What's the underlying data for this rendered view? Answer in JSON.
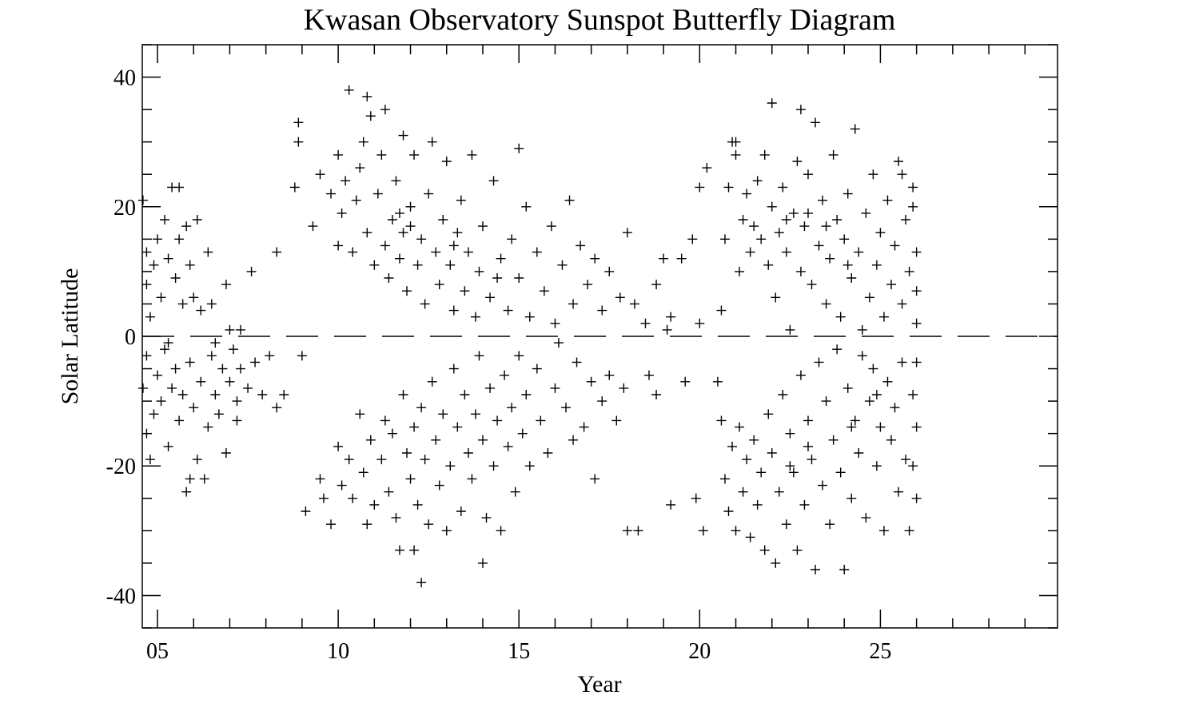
{
  "chart_data": {
    "type": "scatter",
    "title": "Kwasan Observatory Sunspot Butterfly Diagram",
    "xlabel": "Year",
    "ylabel": "Solar Latitude",
    "xlim": [
      4.58,
      29.9
    ],
    "ylim": [
      -45,
      45
    ],
    "xticks": [
      {
        "value": 5,
        "label": "05"
      },
      {
        "value": 10,
        "label": "10"
      },
      {
        "value": 15,
        "label": "15"
      },
      {
        "value": 20,
        "label": "20"
      },
      {
        "value": 25,
        "label": "25"
      }
    ],
    "yticks": [
      {
        "value": -40,
        "label": "-40"
      },
      {
        "value": -20,
        "label": "-20"
      },
      {
        "value": 0,
        "label": "0"
      },
      {
        "value": 20,
        "label": "20"
      },
      {
        "value": 40,
        "label": "40"
      }
    ],
    "x_minor_step": 1,
    "y_minor_step": 5,
    "grid": false,
    "marker": "plus",
    "color": "#000000",
    "reference_line": {
      "y": 0,
      "style": "dashed"
    },
    "points": [
      [
        4.6,
        21
      ],
      [
        4.7,
        13
      ],
      [
        4.7,
        8
      ],
      [
        4.8,
        3
      ],
      [
        4.9,
        11
      ],
      [
        5.0,
        15
      ],
      [
        5.1,
        6
      ],
      [
        5.2,
        18
      ],
      [
        5.3,
        12
      ],
      [
        5.4,
        23
      ],
      [
        5.5,
        9
      ],
      [
        5.6,
        15
      ],
      [
        5.6,
        23
      ],
      [
        5.7,
        5
      ],
      [
        5.8,
        17
      ],
      [
        5.9,
        11
      ],
      [
        6.0,
        6
      ],
      [
        6.1,
        18
      ],
      [
        6.2,
        4
      ],
      [
        6.4,
        13
      ],
      [
        6.5,
        5
      ],
      [
        6.9,
        8
      ],
      [
        7.0,
        1
      ],
      [
        7.3,
        1
      ],
      [
        7.6,
        10
      ],
      [
        8.3,
        13
      ],
      [
        4.6,
        -8
      ],
      [
        4.7,
        -3
      ],
      [
        4.7,
        -15
      ],
      [
        4.8,
        -19
      ],
      [
        4.9,
        -12
      ],
      [
        5.0,
        -6
      ],
      [
        5.1,
        -10
      ],
      [
        5.2,
        -2
      ],
      [
        5.3,
        -17
      ],
      [
        5.4,
        -8
      ],
      [
        5.5,
        -5
      ],
      [
        5.6,
        -13
      ],
      [
        5.7,
        -9
      ],
      [
        5.8,
        -24
      ],
      [
        5.9,
        -4
      ],
      [
        6.0,
        -11
      ],
      [
        6.1,
        -19
      ],
      [
        6.2,
        -7
      ],
      [
        6.3,
        -22
      ],
      [
        6.4,
        -14
      ],
      [
        6.5,
        -3
      ],
      [
        6.6,
        -9
      ],
      [
        6.7,
        -12
      ],
      [
        6.8,
        -5
      ],
      [
        6.9,
        -18
      ],
      [
        7.0,
        -7
      ],
      [
        7.1,
        -2
      ],
      [
        7.2,
        -10
      ],
      [
        7.3,
        -5
      ],
      [
        7.5,
        -8
      ],
      [
        7.7,
        -4
      ],
      [
        7.9,
        -9
      ],
      [
        8.1,
        -3
      ],
      [
        8.3,
        -11
      ],
      [
        8.5,
        -9
      ],
      [
        9.0,
        -3
      ],
      [
        5.9,
        -22
      ],
      [
        6.6,
        -1
      ],
      [
        7.2,
        -13
      ],
      [
        5.3,
        -1
      ],
      [
        8.8,
        23
      ],
      [
        8.9,
        33
      ],
      [
        8.9,
        30
      ],
      [
        9.3,
        17
      ],
      [
        9.5,
        25
      ],
      [
        9.8,
        22
      ],
      [
        10.0,
        28
      ],
      [
        10.0,
        14
      ],
      [
        10.1,
        19
      ],
      [
        10.2,
        24
      ],
      [
        10.3,
        38
      ],
      [
        10.4,
        13
      ],
      [
        10.5,
        21
      ],
      [
        10.6,
        26
      ],
      [
        10.7,
        30
      ],
      [
        10.8,
        37
      ],
      [
        10.8,
        16
      ],
      [
        10.9,
        34
      ],
      [
        11.0,
        11
      ],
      [
        11.1,
        22
      ],
      [
        11.2,
        28
      ],
      [
        11.3,
        35
      ],
      [
        11.3,
        14
      ],
      [
        11.4,
        9
      ],
      [
        11.5,
        18
      ],
      [
        11.6,
        24
      ],
      [
        11.7,
        12
      ],
      [
        11.8,
        31
      ],
      [
        11.8,
        16
      ],
      [
        11.9,
        7
      ],
      [
        12.0,
        20
      ],
      [
        12.1,
        28
      ],
      [
        12.2,
        11
      ],
      [
        12.3,
        15
      ],
      [
        12.4,
        5
      ],
      [
        12.5,
        22
      ],
      [
        12.6,
        30
      ],
      [
        12.7,
        13
      ],
      [
        12.8,
        8
      ],
      [
        12.9,
        18
      ],
      [
        13.0,
        27
      ],
      [
        13.1,
        11
      ],
      [
        13.2,
        4
      ],
      [
        13.3,
        16
      ],
      [
        13.4,
        21
      ],
      [
        13.5,
        7
      ],
      [
        13.6,
        13
      ],
      [
        13.7,
        28
      ],
      [
        13.8,
        3
      ],
      [
        13.9,
        10
      ],
      [
        14.0,
        17
      ],
      [
        14.2,
        6
      ],
      [
        14.3,
        24
      ],
      [
        14.5,
        12
      ],
      [
        14.7,
        4
      ],
      [
        14.8,
        15
      ],
      [
        15.0,
        29
      ],
      [
        15.0,
        9
      ],
      [
        15.2,
        20
      ],
      [
        15.3,
        3
      ],
      [
        15.5,
        13
      ],
      [
        15.7,
        7
      ],
      [
        15.9,
        17
      ],
      [
        16.0,
        2
      ],
      [
        16.2,
        11
      ],
      [
        16.4,
        21
      ],
      [
        16.5,
        5
      ],
      [
        16.7,
        14
      ],
      [
        16.9,
        8
      ],
      [
        17.1,
        12
      ],
      [
        17.3,
        4
      ],
      [
        17.5,
        10
      ],
      [
        17.8,
        6
      ],
      [
        18.0,
        16
      ],
      [
        18.2,
        5
      ],
      [
        18.5,
        2
      ],
      [
        18.8,
        8
      ],
      [
        19.0,
        12
      ],
      [
        19.2,
        3
      ],
      [
        19.5,
        12
      ],
      [
        19.1,
        1
      ],
      [
        12.0,
        17
      ],
      [
        11.7,
        19
      ],
      [
        14.4,
        9
      ],
      [
        13.2,
        14
      ],
      [
        9.1,
        -27
      ],
      [
        9.5,
        -22
      ],
      [
        9.6,
        -25
      ],
      [
        9.8,
        -29
      ],
      [
        10.0,
        -17
      ],
      [
        10.1,
        -23
      ],
      [
        10.3,
        -19
      ],
      [
        10.4,
        -25
      ],
      [
        10.6,
        -12
      ],
      [
        10.7,
        -21
      ],
      [
        10.8,
        -29
      ],
      [
        10.9,
        -16
      ],
      [
        11.0,
        -26
      ],
      [
        11.2,
        -19
      ],
      [
        11.3,
        -13
      ],
      [
        11.4,
        -24
      ],
      [
        11.5,
        -15
      ],
      [
        11.6,
        -28
      ],
      [
        11.7,
        -33
      ],
      [
        11.8,
        -9
      ],
      [
        11.9,
        -18
      ],
      [
        12.0,
        -22
      ],
      [
        12.1,
        -14
      ],
      [
        12.2,
        -26
      ],
      [
        12.3,
        -38
      ],
      [
        12.3,
        -11
      ],
      [
        12.4,
        -19
      ],
      [
        12.5,
        -29
      ],
      [
        12.6,
        -7
      ],
      [
        12.7,
        -16
      ],
      [
        12.8,
        -23
      ],
      [
        12.9,
        -12
      ],
      [
        13.0,
        -30
      ],
      [
        13.1,
        -20
      ],
      [
        13.2,
        -5
      ],
      [
        13.3,
        -14
      ],
      [
        13.4,
        -27
      ],
      [
        13.5,
        -9
      ],
      [
        13.6,
        -18
      ],
      [
        13.7,
        -22
      ],
      [
        13.8,
        -12
      ],
      [
        13.9,
        -3
      ],
      [
        14.0,
        -16
      ],
      [
        14.1,
        -28
      ],
      [
        14.2,
        -8
      ],
      [
        14.3,
        -20
      ],
      [
        14.4,
        -13
      ],
      [
        14.5,
        -30
      ],
      [
        14.6,
        -6
      ],
      [
        14.7,
        -17
      ],
      [
        14.8,
        -11
      ],
      [
        14.9,
        -24
      ],
      [
        15.0,
        -3
      ],
      [
        15.1,
        -15
      ],
      [
        15.2,
        -9
      ],
      [
        15.3,
        -20
      ],
      [
        15.5,
        -5
      ],
      [
        15.6,
        -13
      ],
      [
        15.8,
        -18
      ],
      [
        16.0,
        -8
      ],
      [
        16.1,
        -1
      ],
      [
        16.3,
        -11
      ],
      [
        16.5,
        -16
      ],
      [
        16.6,
        -4
      ],
      [
        16.8,
        -14
      ],
      [
        17.0,
        -7
      ],
      [
        17.1,
        -22
      ],
      [
        17.3,
        -10
      ],
      [
        17.5,
        -6
      ],
      [
        17.7,
        -13
      ],
      [
        17.9,
        -8
      ],
      [
        18.0,
        -30
      ],
      [
        18.3,
        -30
      ],
      [
        18.6,
        -6
      ],
      [
        18.8,
        -9
      ],
      [
        19.2,
        -26
      ],
      [
        14.0,
        -35
      ],
      [
        12.1,
        -33
      ],
      [
        19.8,
        15
      ],
      [
        20.0,
        2
      ],
      [
        20.0,
        23
      ],
      [
        20.2,
        26
      ],
      [
        20.6,
        4
      ],
      [
        20.7,
        15
      ],
      [
        20.8,
        23
      ],
      [
        20.9,
        30
      ],
      [
        21.0,
        28
      ],
      [
        21.1,
        10
      ],
      [
        21.2,
        18
      ],
      [
        21.3,
        22
      ],
      [
        21.4,
        13
      ],
      [
        21.5,
        17
      ],
      [
        21.6,
        24
      ],
      [
        21.7,
        15
      ],
      [
        21.8,
        28
      ],
      [
        21.9,
        11
      ],
      [
        22.0,
        20
      ],
      [
        22.0,
        36
      ],
      [
        22.1,
        6
      ],
      [
        22.2,
        16
      ],
      [
        22.3,
        23
      ],
      [
        22.4,
        13
      ],
      [
        22.5,
        1
      ],
      [
        22.6,
        19
      ],
      [
        22.7,
        27
      ],
      [
        22.8,
        10
      ],
      [
        22.8,
        35
      ],
      [
        22.9,
        17
      ],
      [
        23.0,
        25
      ],
      [
        23.1,
        8
      ],
      [
        23.2,
        33
      ],
      [
        23.3,
        14
      ],
      [
        23.4,
        21
      ],
      [
        23.5,
        5
      ],
      [
        23.6,
        12
      ],
      [
        23.7,
        28
      ],
      [
        23.8,
        18
      ],
      [
        23.9,
        3
      ],
      [
        24.0,
        15
      ],
      [
        24.1,
        22
      ],
      [
        24.2,
        9
      ],
      [
        24.3,
        32
      ],
      [
        24.4,
        13
      ],
      [
        24.5,
        1
      ],
      [
        24.6,
        19
      ],
      [
        24.7,
        6
      ],
      [
        24.8,
        25
      ],
      [
        24.9,
        11
      ],
      [
        25.0,
        16
      ],
      [
        25.1,
        3
      ],
      [
        25.2,
        21
      ],
      [
        25.3,
        8
      ],
      [
        25.4,
        14
      ],
      [
        25.5,
        27
      ],
      [
        25.6,
        5
      ],
      [
        25.7,
        18
      ],
      [
        25.8,
        10
      ],
      [
        25.9,
        23
      ],
      [
        26.0,
        2
      ],
      [
        26.0,
        13
      ],
      [
        26.0,
        7
      ],
      [
        25.9,
        20
      ],
      [
        22.4,
        18
      ],
      [
        23.5,
        17
      ],
      [
        24.1,
        11
      ],
      [
        23.0,
        19
      ],
      [
        21.0,
        30
      ],
      [
        25.6,
        25
      ],
      [
        20.6,
        -13
      ],
      [
        20.7,
        -22
      ],
      [
        20.8,
        -27
      ],
      [
        20.9,
        -17
      ],
      [
        21.0,
        -30
      ],
      [
        21.1,
        -14
      ],
      [
        21.2,
        -24
      ],
      [
        21.3,
        -19
      ],
      [
        21.4,
        -31
      ],
      [
        21.5,
        -16
      ],
      [
        21.6,
        -26
      ],
      [
        21.7,
        -21
      ],
      [
        21.8,
        -33
      ],
      [
        21.9,
        -12
      ],
      [
        22.0,
        -18
      ],
      [
        22.1,
        -35
      ],
      [
        22.2,
        -24
      ],
      [
        22.3,
        -9
      ],
      [
        22.4,
        -29
      ],
      [
        22.5,
        -15
      ],
      [
        22.6,
        -21
      ],
      [
        22.7,
        -33
      ],
      [
        22.8,
        -6
      ],
      [
        22.9,
        -26
      ],
      [
        23.0,
        -13
      ],
      [
        23.1,
        -19
      ],
      [
        23.2,
        -36
      ],
      [
        23.3,
        -4
      ],
      [
        23.4,
        -23
      ],
      [
        23.5,
        -10
      ],
      [
        23.6,
        -29
      ],
      [
        23.7,
        -16
      ],
      [
        23.8,
        -2
      ],
      [
        23.9,
        -21
      ],
      [
        24.0,
        -36
      ],
      [
        24.1,
        -8
      ],
      [
        24.2,
        -25
      ],
      [
        24.3,
        -13
      ],
      [
        24.4,
        -18
      ],
      [
        24.5,
        -3
      ],
      [
        24.6,
        -28
      ],
      [
        24.7,
        -10
      ],
      [
        24.8,
        -5
      ],
      [
        24.9,
        -20
      ],
      [
        25.0,
        -14
      ],
      [
        25.1,
        -30
      ],
      [
        25.2,
        -7
      ],
      [
        25.3,
        -16
      ],
      [
        25.4,
        -11
      ],
      [
        25.5,
        -24
      ],
      [
        25.6,
        -4
      ],
      [
        25.7,
        -19
      ],
      [
        25.8,
        -30
      ],
      [
        25.9,
        -9
      ],
      [
        26.0,
        -14
      ],
      [
        26.0,
        -25
      ],
      [
        26.0,
        -4
      ],
      [
        25.9,
        -20
      ],
      [
        24.9,
        -9
      ],
      [
        23.0,
        -17
      ],
      [
        22.5,
        -20
      ],
      [
        24.2,
        -14
      ],
      [
        20.1,
        -30
      ],
      [
        19.9,
        -25
      ],
      [
        20.5,
        -7
      ],
      [
        19.6,
        -7
      ]
    ]
  }
}
